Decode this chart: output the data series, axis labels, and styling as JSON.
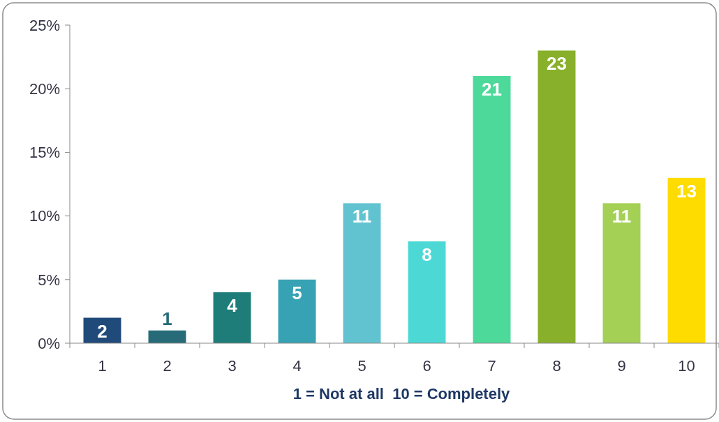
{
  "chart_data": {
    "type": "bar",
    "xlabel": "1 = Not at all  10 = Completely",
    "categories": [
      "1",
      "2",
      "3",
      "4",
      "5",
      "6",
      "7",
      "8",
      "9",
      "10"
    ],
    "values": [
      2,
      1,
      4,
      5,
      11,
      8,
      21,
      23,
      11,
      13
    ],
    "colors": [
      "#1f4a7a",
      "#276b78",
      "#1e7d78",
      "#37a2b3",
      "#62c3d0",
      "#4cd9d6",
      "#4cd99a",
      "#88b02a",
      "#a4d055",
      "#ffdc00"
    ],
    "ylim": [
      0,
      25
    ],
    "yticks": [
      {
        "value": 0,
        "label": "0%"
      },
      {
        "value": 5,
        "label": "5%"
      },
      {
        "value": 10,
        "label": "10%"
      },
      {
        "value": 15,
        "label": "15%"
      },
      {
        "value": 20,
        "label": "20%"
      },
      {
        "value": 25,
        "label": "25%"
      }
    ],
    "data_labels": true
  }
}
